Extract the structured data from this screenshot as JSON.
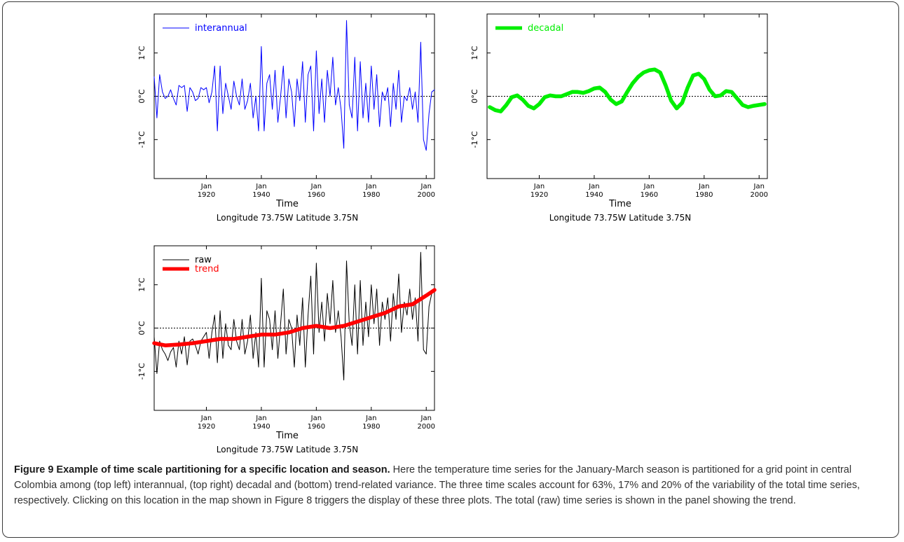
{
  "caption": {
    "title": "Figure 9 Example of time scale partitioning for a specific location and season.",
    "text": " Here the temperature time series for the January-March season is partitioned for a grid point in central Colombia among (top left) interannual, (top right) decadal and (bottom) trend-related variance. The three time scales account for 63%, 17% and 20% of the variability of the total time series, respectively. Clicking on this location in the map shown in Figure 8 triggers the display of these three plots. The total (raw) time series is shown in the panel showing the trend."
  },
  "chart_data": [
    {
      "type": "line",
      "panel": "top-left",
      "xlabel": "Time",
      "location_label": "Longitude 73.75W Latitude 3.75N",
      "xlim": [
        1901,
        2003
      ],
      "ylim": [
        -1.9,
        1.9
      ],
      "x_ticks": [
        {
          "top": "Jan",
          "bottom": "1920",
          "value": 1920
        },
        {
          "top": "Jan",
          "bottom": "1940",
          "value": 1940
        },
        {
          "top": "Jan",
          "bottom": "1960",
          "value": 1960
        },
        {
          "top": "Jan",
          "bottom": "1980",
          "value": 1980
        },
        {
          "top": "Jan",
          "bottom": "2000",
          "value": 2000
        }
      ],
      "y_ticks": [
        {
          "label": "1°C",
          "value": 1
        },
        {
          "label": "0°C",
          "value": 0
        },
        {
          "label": "-1°C",
          "value": -1
        }
      ],
      "zero_line": true,
      "legend_position": "top-left",
      "series": [
        {
          "name": "interannual",
          "color": "#0000ff",
          "width": 1,
          "x": [
            1901,
            1902,
            1903,
            1904,
            1905,
            1906,
            1907,
            1908,
            1909,
            1910,
            1911,
            1912,
            1913,
            1914,
            1915,
            1916,
            1917,
            1918,
            1919,
            1920,
            1921,
            1922,
            1923,
            1924,
            1925,
            1926,
            1927,
            1928,
            1929,
            1930,
            1931,
            1932,
            1933,
            1934,
            1935,
            1936,
            1937,
            1938,
            1939,
            1940,
            1941,
            1942,
            1943,
            1944,
            1945,
            1946,
            1947,
            1948,
            1949,
            1950,
            1951,
            1952,
            1953,
            1954,
            1955,
            1956,
            1957,
            1958,
            1959,
            1960,
            1961,
            1962,
            1963,
            1964,
            1965,
            1966,
            1967,
            1968,
            1969,
            1970,
            1971,
            1972,
            1973,
            1974,
            1975,
            1976,
            1977,
            1978,
            1979,
            1980,
            1981,
            1982,
            1983,
            1984,
            1985,
            1986,
            1987,
            1988,
            1989,
            1990,
            1991,
            1992,
            1993,
            1994,
            1995,
            1996,
            1997,
            1998,
            1999,
            2000,
            2001,
            2002,
            2003
          ],
          "y": [
            0.45,
            -0.5,
            0.5,
            0.1,
            -0.05,
            0.0,
            0.15,
            -0.05,
            -0.2,
            0.25,
            0.2,
            0.25,
            -0.35,
            0.2,
            0.1,
            -0.1,
            -0.05,
            0.2,
            0.15,
            0.2,
            -0.15,
            0.1,
            0.7,
            -0.8,
            0.7,
            -0.4,
            0.3,
            0.0,
            -0.3,
            0.35,
            0.0,
            -0.2,
            0.4,
            -0.3,
            -0.1,
            0.3,
            -0.5,
            0.0,
            -0.8,
            1.15,
            -0.8,
            0.3,
            0.5,
            -0.3,
            0.6,
            -0.6,
            0.0,
            0.7,
            -0.5,
            0.4,
            0.1,
            -0.7,
            0.4,
            -0.1,
            0.8,
            -0.6,
            0.5,
            0.7,
            -0.8,
            1.05,
            -0.4,
            0.4,
            -0.6,
            0.6,
            0.0,
            0.9,
            -0.2,
            0.2,
            -0.3,
            -1.2,
            1.75,
            -0.2,
            -0.5,
            0.9,
            -0.8,
            0.8,
            -0.5,
            0.3,
            -0.6,
            0.7,
            -0.3,
            0.5,
            -0.7,
            0.1,
            -0.1,
            0.2,
            -0.7,
            0.3,
            -0.3,
            0.6,
            -0.6,
            0.0,
            -0.1,
            0.2,
            -0.3,
            0.1,
            -0.6,
            1.25,
            -1.0,
            -1.25,
            -0.4,
            0.1,
            0.15
          ]
        }
      ]
    },
    {
      "type": "line",
      "panel": "top-right",
      "xlabel": "Time",
      "location_label": "Longitude 73.75W Latitude 3.75N",
      "xlim": [
        1901,
        2003
      ],
      "ylim": [
        -1.9,
        1.9
      ],
      "x_ticks": [
        {
          "top": "Jan",
          "bottom": "1920",
          "value": 1920
        },
        {
          "top": "Jan",
          "bottom": "1940",
          "value": 1940
        },
        {
          "top": "Jan",
          "bottom": "1960",
          "value": 1960
        },
        {
          "top": "Jan",
          "bottom": "1980",
          "value": 1980
        },
        {
          "top": "Jan",
          "bottom": "2000",
          "value": 2000
        }
      ],
      "y_ticks": [
        {
          "label": "1°C",
          "value": 1
        },
        {
          "label": "0°C",
          "value": 0
        },
        {
          "label": "-1°C",
          "value": -1
        }
      ],
      "zero_line": true,
      "legend_position": "top-left",
      "series": [
        {
          "name": "decadal",
          "color": "#00ee00",
          "width": 5.5,
          "x": [
            1902,
            1904,
            1906,
            1908,
            1910,
            1912,
            1914,
            1916,
            1918,
            1920,
            1922,
            1924,
            1926,
            1928,
            1930,
            1932,
            1934,
            1936,
            1938,
            1940,
            1942,
            1944,
            1946,
            1948,
            1950,
            1952,
            1954,
            1956,
            1958,
            1960,
            1962,
            1964,
            1966,
            1968,
            1970,
            1972,
            1974,
            1976,
            1978,
            1980,
            1982,
            1984,
            1986,
            1988,
            1990,
            1992,
            1994,
            1996,
            1998,
            2000,
            2002
          ],
          "y": [
            -0.25,
            -0.32,
            -0.35,
            -0.2,
            -0.02,
            0.02,
            -0.08,
            -0.22,
            -0.28,
            -0.18,
            -0.02,
            0.02,
            0.0,
            0.0,
            0.05,
            0.1,
            0.1,
            0.08,
            0.12,
            0.18,
            0.2,
            0.1,
            -0.08,
            -0.18,
            -0.12,
            0.1,
            0.3,
            0.45,
            0.55,
            0.6,
            0.62,
            0.55,
            0.25,
            -0.1,
            -0.28,
            -0.15,
            0.2,
            0.48,
            0.52,
            0.4,
            0.15,
            0.0,
            0.02,
            0.12,
            0.1,
            -0.05,
            -0.2,
            -0.25,
            -0.22,
            -0.2,
            -0.18
          ]
        }
      ]
    },
    {
      "type": "line",
      "panel": "bottom",
      "xlabel": "Time",
      "location_label": "Longitude 73.75W Latitude 3.75N",
      "xlim": [
        1901,
        2003
      ],
      "ylim": [
        -1.9,
        1.9
      ],
      "x_ticks": [
        {
          "top": "Jan",
          "bottom": "1920",
          "value": 1920
        },
        {
          "top": "Jan",
          "bottom": "1940",
          "value": 1940
        },
        {
          "top": "Jan",
          "bottom": "1960",
          "value": 1960
        },
        {
          "top": "Jan",
          "bottom": "1980",
          "value": 1980
        },
        {
          "top": "Jan",
          "bottom": "2000",
          "value": 2000
        }
      ],
      "y_ticks": [
        {
          "label": "1°C",
          "value": 1
        },
        {
          "label": "0°C",
          "value": 0
        },
        {
          "label": "-1°C",
          "value": -1
        }
      ],
      "zero_line": true,
      "legend_position": "top-left",
      "series": [
        {
          "name": "raw",
          "color": "#000000",
          "width": 1,
          "x": [
            1901,
            1902,
            1903,
            1904,
            1905,
            1906,
            1907,
            1908,
            1909,
            1910,
            1911,
            1912,
            1913,
            1914,
            1915,
            1916,
            1917,
            1918,
            1919,
            1920,
            1921,
            1922,
            1923,
            1924,
            1925,
            1926,
            1927,
            1928,
            1929,
            1930,
            1931,
            1932,
            1933,
            1934,
            1935,
            1936,
            1937,
            1938,
            1939,
            1940,
            1941,
            1942,
            1943,
            1944,
            1945,
            1946,
            1947,
            1948,
            1949,
            1950,
            1951,
            1952,
            1953,
            1954,
            1955,
            1956,
            1957,
            1958,
            1959,
            1960,
            1961,
            1962,
            1963,
            1964,
            1965,
            1966,
            1967,
            1968,
            1969,
            1970,
            1971,
            1972,
            1973,
            1974,
            1975,
            1976,
            1977,
            1978,
            1979,
            1980,
            1981,
            1982,
            1983,
            1984,
            1985,
            1986,
            1987,
            1988,
            1989,
            1990,
            1991,
            1992,
            1993,
            1994,
            1995,
            1996,
            1997,
            1998,
            1999,
            2000,
            2001,
            2002,
            2003
          ],
          "y": [
            -0.2,
            -1.05,
            -0.3,
            -0.5,
            -0.6,
            -0.75,
            -0.55,
            -0.45,
            -0.9,
            -0.3,
            -0.6,
            -0.2,
            -0.85,
            -0.3,
            -0.25,
            -0.4,
            -0.6,
            -0.3,
            -0.2,
            -0.1,
            -0.7,
            -0.1,
            0.3,
            -0.8,
            0.4,
            -0.7,
            0.1,
            -0.4,
            -0.5,
            0.2,
            -0.3,
            -0.5,
            0.2,
            -0.6,
            -0.3,
            0.3,
            -0.7,
            -0.1,
            -0.9,
            1.15,
            -0.9,
            0.4,
            0.2,
            -0.5,
            0.4,
            -0.7,
            0.1,
            0.9,
            -0.6,
            0.2,
            0.0,
            -0.9,
            0.3,
            -0.4,
            0.7,
            -0.9,
            0.3,
            1.2,
            -0.6,
            1.5,
            -0.1,
            0.6,
            -0.3,
            0.8,
            0.1,
            1.1,
            -0.1,
            0.4,
            -0.2,
            -1.2,
            1.55,
            0.1,
            -0.4,
            1.0,
            -0.6,
            1.1,
            -0.4,
            0.6,
            -0.2,
            1.0,
            0.1,
            0.9,
            -0.4,
            0.6,
            0.2,
            0.7,
            -0.3,
            0.8,
            0.2,
            1.25,
            -0.1,
            0.6,
            0.3,
            0.9,
            0.2,
            0.7,
            -0.3,
            1.75,
            -0.5,
            -0.6,
            0.5,
            0.8,
            0.9
          ]
        },
        {
          "name": "trend",
          "color": "#ff0000",
          "width": 5.5,
          "x": [
            1901,
            1905,
            1910,
            1915,
            1920,
            1925,
            1930,
            1935,
            1940,
            1945,
            1950,
            1955,
            1960,
            1965,
            1970,
            1975,
            1980,
            1985,
            1990,
            1995,
            2000,
            2003
          ],
          "y": [
            -0.35,
            -0.4,
            -0.38,
            -0.35,
            -0.3,
            -0.25,
            -0.25,
            -0.2,
            -0.15,
            -0.15,
            -0.1,
            0.0,
            0.05,
            0.0,
            0.05,
            0.15,
            0.25,
            0.35,
            0.5,
            0.55,
            0.75,
            0.88
          ]
        }
      ]
    }
  ]
}
